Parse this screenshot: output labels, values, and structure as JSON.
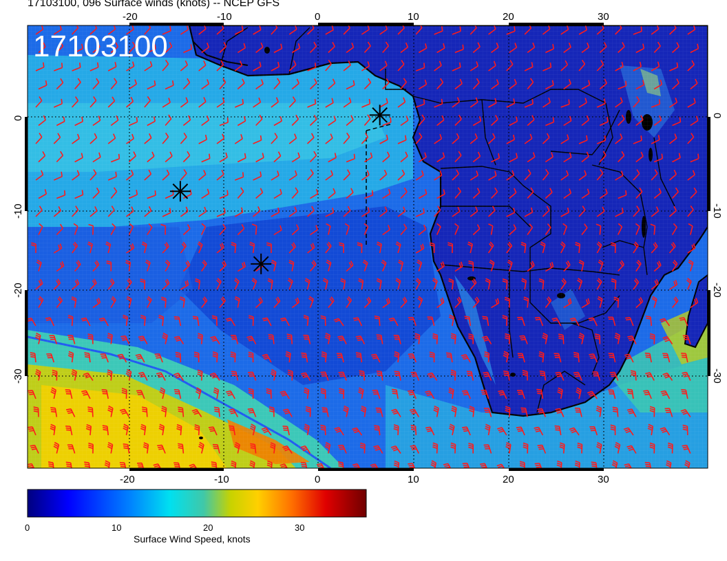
{
  "title": "17103100, 096 Surface winds (knots) -- NCEP GFS",
  "timestamp_label": "17103100",
  "colorbar": {
    "label": "Surface Wind Speed, knots",
    "ticks": [
      "0",
      "10",
      "20",
      "30"
    ],
    "tick_values": [
      0,
      10,
      20,
      30
    ],
    "range": [
      0,
      36
    ],
    "colors": [
      "#00007f",
      "#0000ff",
      "#0080ff",
      "#00d8e8",
      "#3cc8b4",
      "#c8d200",
      "#ffd000",
      "#ff7800",
      "#e60000",
      "#780000"
    ]
  },
  "axes": {
    "lon_ticks": [
      "-20",
      "-10",
      "0",
      "10",
      "20",
      "30"
    ],
    "lon_values": [
      -20,
      -10,
      0,
      10,
      20,
      30
    ],
    "lat_ticks": [
      "0",
      "-10",
      "-20",
      "-30"
    ],
    "lat_values": [
      0,
      -10,
      -20,
      -30
    ],
    "lon_range": [
      -30,
      40
    ],
    "lat_range": [
      -40,
      9
    ]
  },
  "storm_markers": [
    {
      "lon": 6.5,
      "lat": 0.2
    },
    {
      "lon": -14.5,
      "lat": -8.2
    },
    {
      "lon": -6.0,
      "lat": -16.2
    }
  ],
  "colors": {
    "ocean_base": "#1a66e6",
    "land": "#1a2cc4",
    "barbs": "#ff1a1a",
    "coast": "#000000"
  }
}
